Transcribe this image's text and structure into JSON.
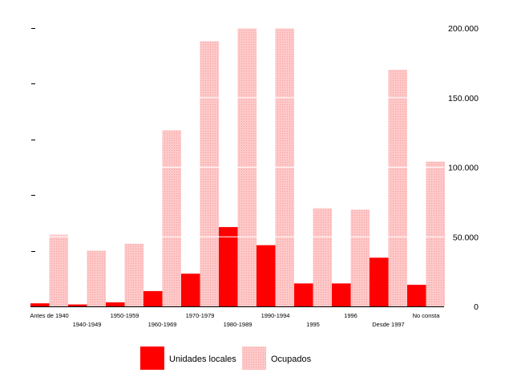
{
  "chart_data": {
    "type": "bar",
    "categories": [
      "Antes de 1940",
      "1940-1949",
      "1950-1959",
      "1960-1969",
      "1970-1979",
      "1980-1989",
      "1990-1994",
      "1995",
      "1996",
      "Desde 1997",
      "No consta"
    ],
    "series": [
      {
        "name": "Unidades locales",
        "values": [
          2200,
          1400,
          2900,
          11000,
          23500,
          57000,
          44000,
          16500,
          16500,
          35000,
          15500
        ],
        "axis": "left",
        "color": "#ff0000"
      },
      {
        "name": "Ocupados",
        "values": [
          51500,
          40000,
          45000,
          126500,
          190500,
          200000,
          200000,
          70500,
          69500,
          170000,
          104000
        ],
        "axis": "right",
        "color": "#ffc8c8"
      }
    ],
    "y_right": {
      "range": [
        0,
        200000
      ],
      "ticks": [
        0,
        50000,
        100000,
        150000,
        200000
      ],
      "tick_labels": [
        "0",
        "50.000",
        "100.000",
        "150.000",
        "200.000"
      ]
    },
    "y_left": {
      "range": [
        0,
        200000
      ],
      "tick_count": 6,
      "tick_labels_visible": false
    },
    "grid": "white-lines-on-bars",
    "legend_position": "bottom-center",
    "title": "",
    "xlabel": "",
    "ylabel": ""
  }
}
